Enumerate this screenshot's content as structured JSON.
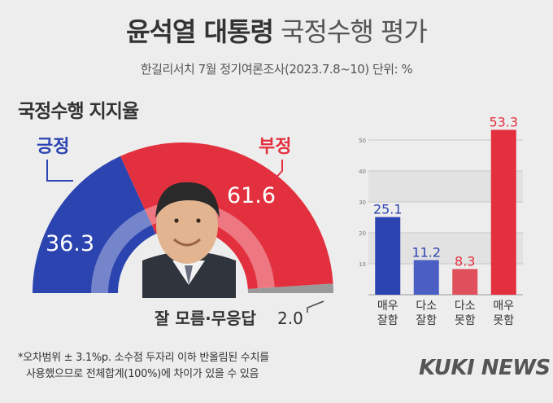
{
  "header": {
    "title_bold": "윤석열 대통령",
    "title_rest": "국정수행 평가",
    "subtitle": "한길리서치 7월 정기여론조사(2023.7.8~10) 단위: %"
  },
  "section_title": "국정수행 지지율",
  "note": {
    "line1": "*오차범위 ± 3.1%p. 소수점 두자리 이하 반올림된 수치를",
    "line2": "사용했으므로 전체합계(100%)에 차이가 있을 수 있음"
  },
  "logo": "KUKI NEWS",
  "colors": {
    "blue": "#2c44b0",
    "red": "#e3303e",
    "gray": "#9a9a9a"
  },
  "chart_data": [
    {
      "type": "pie",
      "title": "국정수행 지지율",
      "slices": [
        {
          "label": "긍정",
          "value": 36.3,
          "display": "36.3",
          "color": "#2c44b0"
        },
        {
          "label": "부정",
          "value": 61.6,
          "display": "61.6",
          "color": "#e3303e"
        },
        {
          "label": "잘 모름·무응답",
          "value": 2.0,
          "display": "2.0",
          "color": "#9a9a9a"
        }
      ]
    },
    {
      "type": "bar",
      "categories": [
        [
          "매우",
          "잘함"
        ],
        [
          "다소",
          "잘함"
        ],
        [
          "다소",
          "못함"
        ],
        [
          "매우",
          "못함"
        ]
      ],
      "values": [
        25.1,
        11.2,
        8.3,
        53.3
      ],
      "labels": [
        "25.1",
        "11.2",
        "8.3",
        "53.3"
      ],
      "colors": [
        "#2c44b0",
        "#4a5ec4",
        "#e0505c",
        "#e3303e"
      ],
      "ylim": [
        0,
        55
      ],
      "yticks": [
        "10",
        "20",
        "30",
        "40",
        "50"
      ],
      "grid": true
    }
  ]
}
